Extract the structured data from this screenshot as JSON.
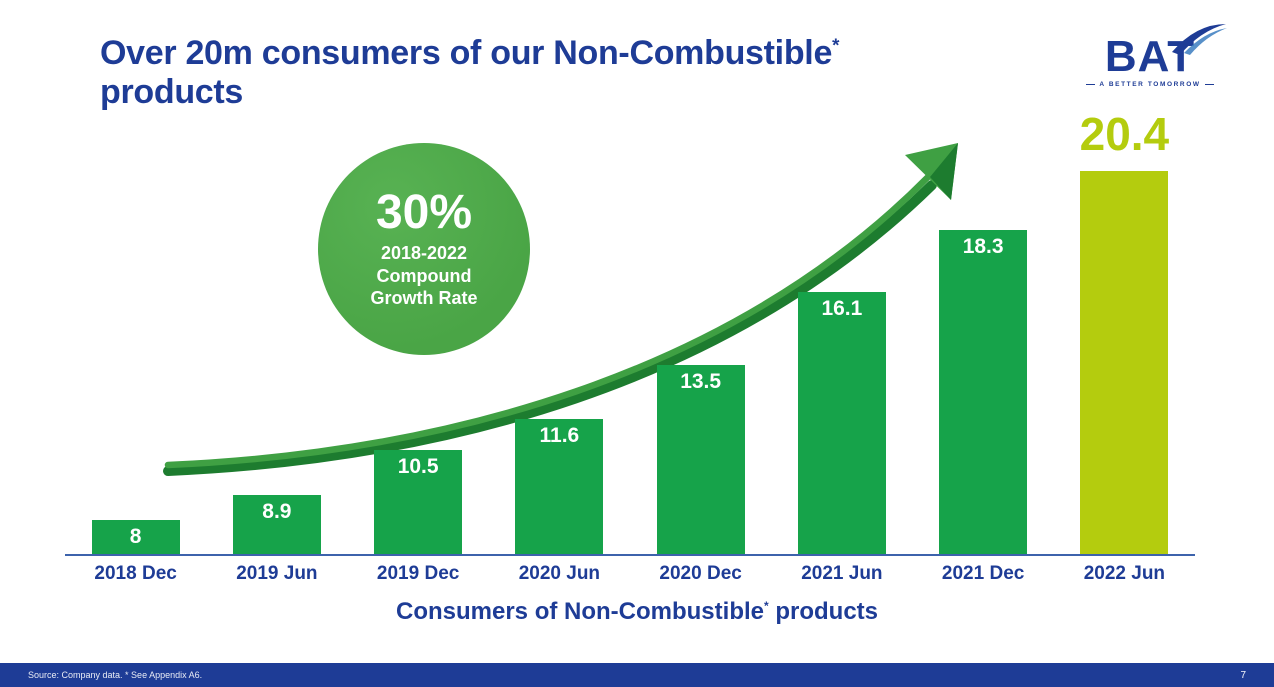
{
  "slide": {
    "title": {
      "line1": "Over 20m consumers of our Non-Combustible",
      "asterisk": "*",
      "line2": "products"
    },
    "logo": {
      "text": "BAT",
      "tagline": "A BETTER TOMORROW"
    },
    "badge": {
      "percent": "30%",
      "period": "2018-2022",
      "label_line1": "Compound",
      "label_line2": "Growth Rate"
    },
    "caption": {
      "part1": "Consumers of Non-Combustible",
      "asterisk": "*",
      "part2": " products"
    },
    "footer": {
      "source": "Source: Company data. * See Appendix A6.",
      "page_number": "7"
    }
  },
  "colors": {
    "brand_blue": "#1e3c96",
    "footer_blue": "#1e3c96",
    "bar_green": "#16a34a",
    "highlight_lime": "#b4cc0e",
    "badge_green": "#4aa546",
    "arrow_green_light": "#3fa043",
    "arrow_green_dark": "#1d7c2f",
    "axis_blue": "#3d63ac"
  },
  "chart_data": {
    "type": "bar",
    "title": "Consumers of Non-Combustible* products",
    "categories": [
      "2018 Dec",
      "2019 Jun",
      "2019 Dec",
      "2020 Jun",
      "2020 Dec",
      "2021 Jun",
      "2021 Dec",
      "2022 Jun"
    ],
    "values": [
      8,
      8.9,
      10.5,
      11.6,
      13.5,
      16.1,
      18.3,
      20.4
    ],
    "value_labels": [
      "8",
      "8.9",
      "10.5",
      "11.6",
      "13.5",
      "16.1",
      "18.3",
      "20.4"
    ],
    "annotation": "30% 2018-2022 Compound Growth Rate",
    "ylim": [
      6.8,
      21.2
    ],
    "gridlines": false,
    "highlight_index": 7,
    "bar_color": "#16a34a",
    "highlight_color": "#b4cc0e"
  }
}
